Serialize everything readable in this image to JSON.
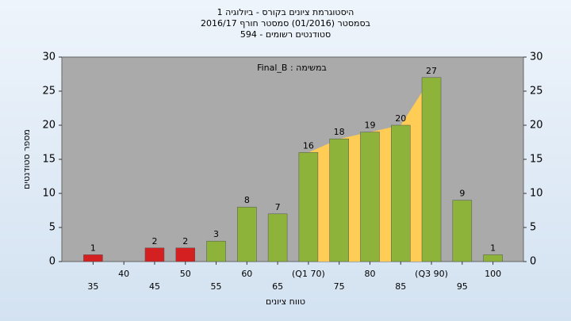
{
  "chart_data": {
    "type": "bar",
    "title": [
      "היסטוגרמת ציונים בקורס - ביולוגיה 1",
      "בסמסטר (01/2016) סמסטר חורף 2016/17",
      "סטודנטים רשומים - 594"
    ],
    "annotation": "במשימה : Final_B",
    "y_label": "מספר סטודנטים",
    "x_label": "טווח ציונים",
    "categories": [
      "35",
      "40",
      "45",
      "50",
      "55",
      "60",
      "65",
      "(Q1 70)",
      "75",
      "80",
      "85",
      "(Q3 90)",
      "95",
      "100"
    ],
    "values": [
      1,
      0,
      2,
      2,
      3,
      8,
      7,
      16,
      18,
      19,
      20,
      27,
      9,
      1
    ],
    "colors": [
      "#d42020",
      "#d42020",
      "#d42020",
      "#d42020",
      "#8db33a",
      "#8db33a",
      "#8db33a",
      "#8db33a",
      "#8db33a",
      "#8db33a",
      "#8db33a",
      "#8db33a",
      "#8db33a",
      "#8db33a"
    ],
    "quartile_range_color": "#ffcc55",
    "ylim": [
      0,
      30
    ],
    "yticks": [
      0,
      5,
      10,
      15,
      20,
      25,
      30
    ],
    "grid": false
  }
}
